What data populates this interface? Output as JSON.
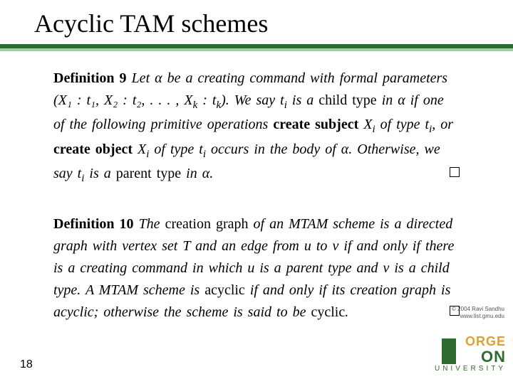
{
  "slide": {
    "title": "Acyclic TAM schemes",
    "page_number": "18",
    "copyright_line1": "© 2004 Ravi Sandhu",
    "copyright_line2": "www.list.gmu.edu",
    "rule_color_dark": "#2e6b2e",
    "rule_color_light": "#9fcf9f"
  },
  "definition9": {
    "label": "Definition 9",
    "lead": "Let ",
    "alpha": "α",
    "t1": " be a creating command with formal parameters (",
    "params": "X₁ : t₁, X₂ : t₂, . . . , X",
    "paramk": "k",
    "params2": " : t",
    "paramk2": "k",
    "params3": "). We say ",
    "ti": "t",
    "isub": "i",
    "t2": " is a ",
    "childtype": "child type",
    "t3": " in ",
    "t4": " if one of the following primitive operations ",
    "createsubj": "create subject ",
    "Xi": "X",
    "t5": " of type ",
    "t6": ", or ",
    "createobj": "create object ",
    "t7": " of type ",
    "t8": " occurs in the body of ",
    "t9": ". Otherwise, we say ",
    "t10": " is a ",
    "parenttype": "parent type",
    "t11": " in ",
    "t12": "."
  },
  "definition10": {
    "label": "Definition 10",
    "t1": "The ",
    "cg": "creation graph",
    "t2": " of an MTAM scheme is a directed graph with vertex set ",
    "T": "T",
    "t3": " and an edge from ",
    "u": "u",
    "t4": " to ",
    "v": "v",
    "t5": " if and only if there is a creating command in which ",
    "t6": " is a parent type and ",
    "t7": " is a child type. A MTAM scheme is ",
    "acyclic": "acyclic",
    "t8": " if and only if its creation graph is acyclic; otherwise the scheme is said to be ",
    "cyclic": "cyclic",
    "t9": "."
  },
  "logo": {
    "line1": "ORGE",
    "line2": "ON",
    "line3": "UNIVERSITY"
  }
}
